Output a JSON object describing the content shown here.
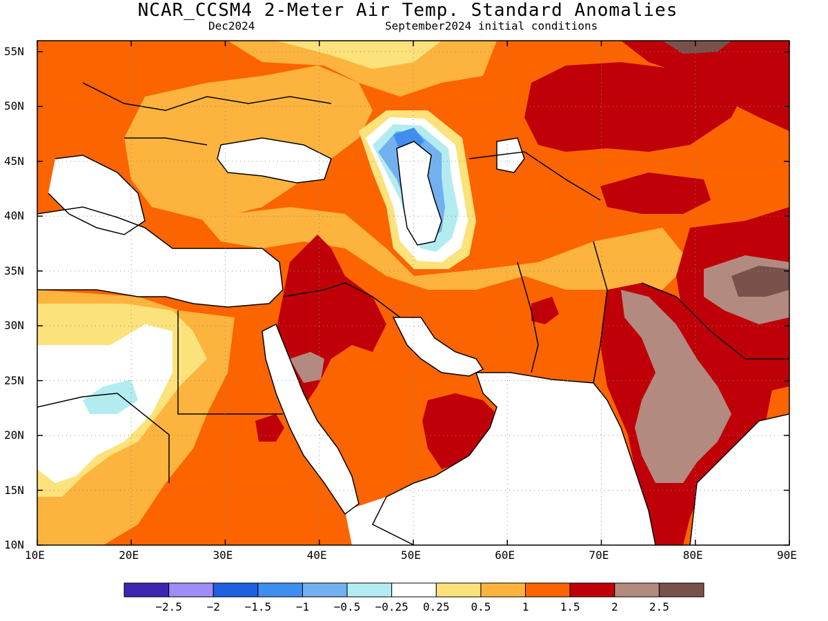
{
  "title": "NCAR_CCSM4 2-Meter Air Temp. Standard Anomalies",
  "forecast_month": "Dec2024",
  "initial_conditions": "September2024 initial conditions",
  "lat_labels": [
    "55N",
    "50N",
    "45N",
    "40N",
    "35N",
    "30N",
    "25N",
    "20N",
    "15N",
    "10N"
  ],
  "lon_labels": [
    "10E",
    "20E",
    "30E",
    "40E",
    "50E",
    "60E",
    "70E",
    "80E",
    "90E"
  ],
  "colorbar": {
    "colors": [
      "#3a26b0",
      "#9d8df5",
      "#2060e0",
      "#3e8ef0",
      "#72b0f0",
      "#b2ecf0",
      "#ffffff",
      "#fce27a",
      "#fcb43e",
      "#fc6400",
      "#c00008",
      "#b38a80",
      "#78514a"
    ],
    "labels": [
      "−2.5",
      "−2",
      "−1.5",
      "−1",
      "−0.5",
      "−0.25",
      "0.25",
      "0.5",
      "1",
      "1.5",
      "2",
      "2.5"
    ]
  },
  "map": {
    "extent": {
      "lon_min": 10,
      "lon_max": 90,
      "lat_min": 10,
      "lat_max": 56
    },
    "grid_lons": [
      20,
      30,
      40,
      50,
      60,
      70,
      80
    ],
    "grid_lats": [
      15,
      20,
      25,
      30,
      35,
      40,
      45,
      50,
      55
    ]
  }
}
